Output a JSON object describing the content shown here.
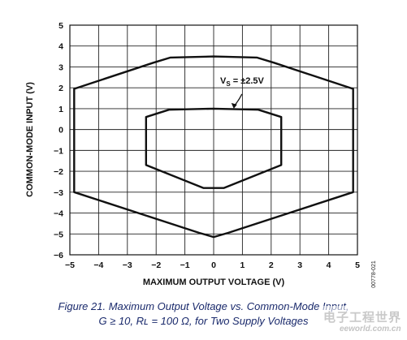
{
  "chart_data": {
    "type": "line",
    "xlabel": "MAXIMUM OUTPUT VOLTAGE (V)",
    "ylabel": "COMMON-MODE INPUT (V)",
    "xlim": [
      -5,
      5
    ],
    "ylim": [
      -6,
      5
    ],
    "xticks": [
      "−5",
      "−4",
      "−3",
      "−2",
      "−1",
      "0",
      "1",
      "2",
      "3",
      "4",
      "5"
    ],
    "yticks": [
      "5",
      "4",
      "3",
      "2",
      "1",
      "0",
      "−1",
      "−2",
      "−3",
      "−4",
      "−5",
      "−6"
    ],
    "grid": true,
    "annotation": {
      "text": "Vₛ = ±2.5V",
      "arrow_to": [
        0.7,
        1.0
      ]
    },
    "series": [
      {
        "name": "",
        "closed": true,
        "points": [
          [
            -4.85,
            1.95
          ],
          [
            -2.1,
            3.2
          ],
          [
            -1.5,
            3.45
          ],
          [
            0,
            3.5
          ],
          [
            1.5,
            3.45
          ],
          [
            2.1,
            3.2
          ],
          [
            4.85,
            1.95
          ],
          [
            4.85,
            -3.0
          ],
          [
            0.5,
            -4.95
          ],
          [
            0,
            -5.15
          ],
          [
            -0.5,
            -4.95
          ],
          [
            -4.85,
            -3.0
          ],
          [
            -4.85,
            1.6
          ],
          [
            -4.85,
            1.95
          ]
        ]
      },
      {
        "name": "",
        "closed": true,
        "points": [
          [
            -2.35,
            0.6
          ],
          [
            -1.55,
            0.95
          ],
          [
            0,
            1.0
          ],
          [
            1.55,
            0.95
          ],
          [
            2.35,
            0.6
          ],
          [
            2.35,
            -1.7
          ],
          [
            0.35,
            -2.8
          ],
          [
            -0.35,
            -2.8
          ],
          [
            -2.35,
            -1.7
          ],
          [
            -2.35,
            0.6
          ]
        ]
      }
    ],
    "figure_id": "00778-021"
  },
  "caption": {
    "line1": "Figure 21. Maximum Output Voltage vs. Common-Mode Input,",
    "line2": "G ≥ 10, Rʟ = 100 Ω, for Two Supply Voltages"
  },
  "watermark": {
    "cn": "电子工程世界",
    "url": "eeworld.com.cn"
  },
  "colors": {
    "line": "#111111",
    "grid": "#222222",
    "caption": "#1a2a6c"
  }
}
